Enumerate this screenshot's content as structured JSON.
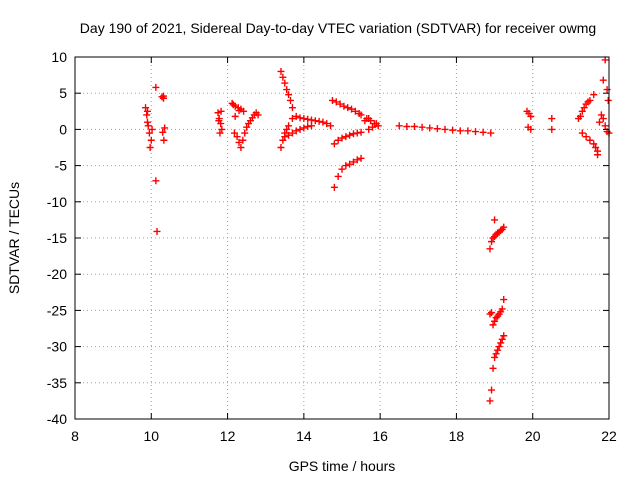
{
  "chart_data": {
    "type": "scatter",
    "title": "Day 190 of 2021, Sidereal Day-to-day VTEC variation (SDTVAR) for receiver owmg",
    "xlabel": "GPS time / hours",
    "ylabel": "SDTVAR / TECUs",
    "xlim": [
      8,
      22
    ],
    "ylim": [
      -40,
      10
    ],
    "xticks": [
      8,
      10,
      12,
      14,
      16,
      18,
      20,
      22
    ],
    "yticks": [
      -40,
      -35,
      -30,
      -25,
      -20,
      -15,
      -10,
      -5,
      0,
      5,
      10
    ],
    "grid": true,
    "marker": "+",
    "color": "#ff0000",
    "series": [
      {
        "name": "SDTVAR",
        "x": [
          9.85,
          9.9,
          9.95,
          10.0,
          9.88,
          9.92,
          9.97,
          10.02,
          9.9,
          10.12,
          10.12,
          10.15,
          10.28,
          10.32,
          10.3,
          10.33,
          10.35,
          10.32,
          11.75,
          11.78,
          11.82,
          11.85,
          11.8,
          11.77,
          11.83,
          12.12,
          12.15,
          12.2,
          12.28,
          12.35,
          12.42,
          12.18,
          12.25,
          12.3,
          12.35,
          12.4,
          12.45,
          12.5,
          12.55,
          12.6,
          12.65,
          12.7,
          12.75,
          12.8,
          12.2,
          12.3,
          13.4,
          13.45,
          13.5,
          13.55,
          13.6,
          13.65,
          13.7,
          13.4,
          13.45,
          13.5,
          13.55,
          13.6,
          13.7,
          13.8,
          13.9,
          14.0,
          14.1,
          14.2,
          14.3,
          14.4,
          14.5,
          14.6,
          14.7,
          13.5,
          13.6,
          13.7,
          13.8,
          13.9,
          14.0,
          14.1,
          14.2,
          14.75,
          14.85,
          14.95,
          15.05,
          15.15,
          15.25,
          15.35,
          15.45,
          15.5,
          14.8,
          14.9,
          15.0,
          15.1,
          15.2,
          15.3,
          15.4,
          15.5,
          14.8,
          14.9,
          15.0,
          15.1,
          15.2,
          15.3,
          15.4,
          15.5,
          15.6,
          15.7,
          15.65,
          15.75,
          15.85,
          15.95,
          15.7,
          15.8,
          15.9,
          16.5,
          16.7,
          16.9,
          17.1,
          17.3,
          17.5,
          17.7,
          17.9,
          18.1,
          18.3,
          18.5,
          18.7,
          18.9,
          18.88,
          18.92,
          18.96,
          19.0,
          19.04,
          19.08,
          19.12,
          19.16,
          19.2,
          19.24,
          19.0,
          18.88,
          18.92,
          18.96,
          19.0,
          19.04,
          19.08,
          19.12,
          19.16,
          19.2,
          19.24,
          18.88,
          18.92,
          18.96,
          19.0,
          19.04,
          19.08,
          19.12,
          19.16,
          19.2,
          19.24,
          19.85,
          19.9,
          19.95,
          19.88,
          19.95,
          20.5,
          20.5,
          21.2,
          21.25,
          21.3,
          21.35,
          21.4,
          21.45,
          21.5,
          21.3,
          21.4,
          21.5,
          21.6,
          21.65,
          21.7,
          21.75,
          21.8,
          21.85,
          21.9,
          21.95,
          22.0,
          21.85,
          21.9,
          21.95,
          21.98,
          21.6,
          21.7
        ],
        "y": [
          3.0,
          1.0,
          -0.5,
          -1.5,
          2.0,
          0.5,
          -2.5,
          0.0,
          2.5,
          5.8,
          -7.1,
          -14.1,
          4.5,
          4.3,
          -0.4,
          -1.5,
          0.2,
          4.6,
          2.3,
          1.5,
          0.8,
          0.0,
          -0.5,
          1.2,
          2.5,
          3.6,
          3.4,
          3.2,
          3.0,
          2.8,
          2.5,
          -0.5,
          -1.0,
          -1.8,
          -2.5,
          -1.5,
          -0.5,
          0.3,
          0.8,
          1.2,
          1.6,
          2.0,
          2.3,
          2.0,
          1.8,
          2.6,
          8.0,
          7.2,
          6.4,
          5.5,
          4.8,
          4.0,
          3.0,
          -2.5,
          -1.5,
          -0.5,
          0.0,
          0.5,
          1.5,
          1.8,
          1.6,
          1.5,
          1.4,
          1.3,
          1.2,
          1.1,
          1.0,
          0.8,
          0.5,
          -1.0,
          -0.8,
          -0.5,
          -0.2,
          0.0,
          0.2,
          0.4,
          0.5,
          4.0,
          3.8,
          3.5,
          3.2,
          3.0,
          2.8,
          2.5,
          2.2,
          2.0,
          -2.0,
          -1.5,
          -1.2,
          -1.0,
          -0.8,
          -0.6,
          -0.5,
          -0.4,
          -8.0,
          -6.5,
          -5.5,
          -5.0,
          -4.8,
          -4.5,
          -4.2,
          -4.0,
          1.2,
          1.5,
          1.5,
          1.2,
          0.8,
          0.5,
          0.0,
          0.3,
          0.8,
          0.5,
          0.4,
          0.4,
          0.3,
          0.2,
          0.1,
          0.0,
          -0.1,
          -0.2,
          -0.2,
          -0.3,
          -0.4,
          -0.5,
          -16.5,
          -15.5,
          -15.0,
          -14.8,
          -14.5,
          -14.3,
          -14.2,
          -14.0,
          -13.8,
          -13.5,
          -12.5,
          -25.5,
          -25.3,
          -27.0,
          -26.5,
          -26.0,
          -25.8,
          -25.5,
          -25.2,
          -24.8,
          -23.5,
          -37.5,
          -36.0,
          -33.0,
          -31.5,
          -31.0,
          -30.5,
          -30.0,
          -29.5,
          -29.0,
          -28.5,
          2.5,
          2.2,
          1.8,
          0.3,
          0.0,
          1.5,
          0.0,
          1.5,
          1.8,
          2.5,
          3.0,
          3.5,
          3.8,
          4.0,
          -0.5,
          -1.0,
          -1.5,
          -2.0,
          -2.5,
          -3.0,
          1.0,
          2.0,
          1.5,
          0.5,
          -0.3,
          -0.5,
          6.8,
          9.6,
          5.5,
          4.0,
          4.8,
          -3.5
        ]
      }
    ]
  }
}
